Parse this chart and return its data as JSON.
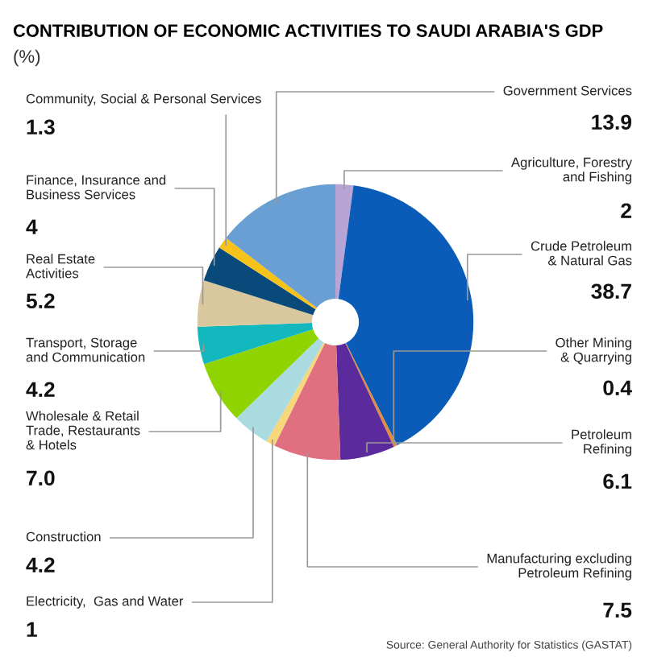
{
  "chart_data": {
    "type": "donut",
    "title": "CONTRIBUTION OF ECONOMIC ACTIVITIES TO SAUDI ARABIA'S GDP",
    "subtitle": "(%)",
    "categories": [
      "Agriculture, Forestry\nand Fishing",
      "Crude Petroleum\n& Natural Gas",
      "Other Mining\n& Quarrying",
      "Petroleum\nRefining",
      "Manufacturing excluding\nPetroleum Refining",
      "Electricity,  Gas and Water",
      "Construction",
      "Wholesale & Retail\nTrade, Restaurants\n& Hotels",
      "Transport, Storage\nand Communication",
      "Real Estate\nActivities",
      "Finance, Insurance and\nBusiness Services",
      "Community, Social & Personal Services",
      "Government Services"
    ],
    "values": [
      2,
      38.7,
      0.4,
      6.1,
      7.5,
      1,
      4.2,
      7.0,
      4.2,
      5.2,
      4,
      1.3,
      13.9
    ],
    "value_labels": [
      "2",
      "38.7",
      "0.4",
      "6.1",
      "7.5",
      "1",
      "4.2",
      "7.0",
      "4.2",
      "5.2",
      "4",
      "1.3",
      "13.9"
    ],
    "colors": [
      "#b7a5d6",
      "#0a5cb8",
      "#e08a3c",
      "#5b2a9c",
      "#e07080",
      "#f6d77a",
      "#a9dbe0",
      "#8fd400",
      "#13b8bf",
      "#d9c79e",
      "#0a4a7a",
      "#f7c21a",
      "#6a9fd4"
    ],
    "annotations": [
      "Source: General Authority for Statistics (GASTAT)"
    ]
  }
}
